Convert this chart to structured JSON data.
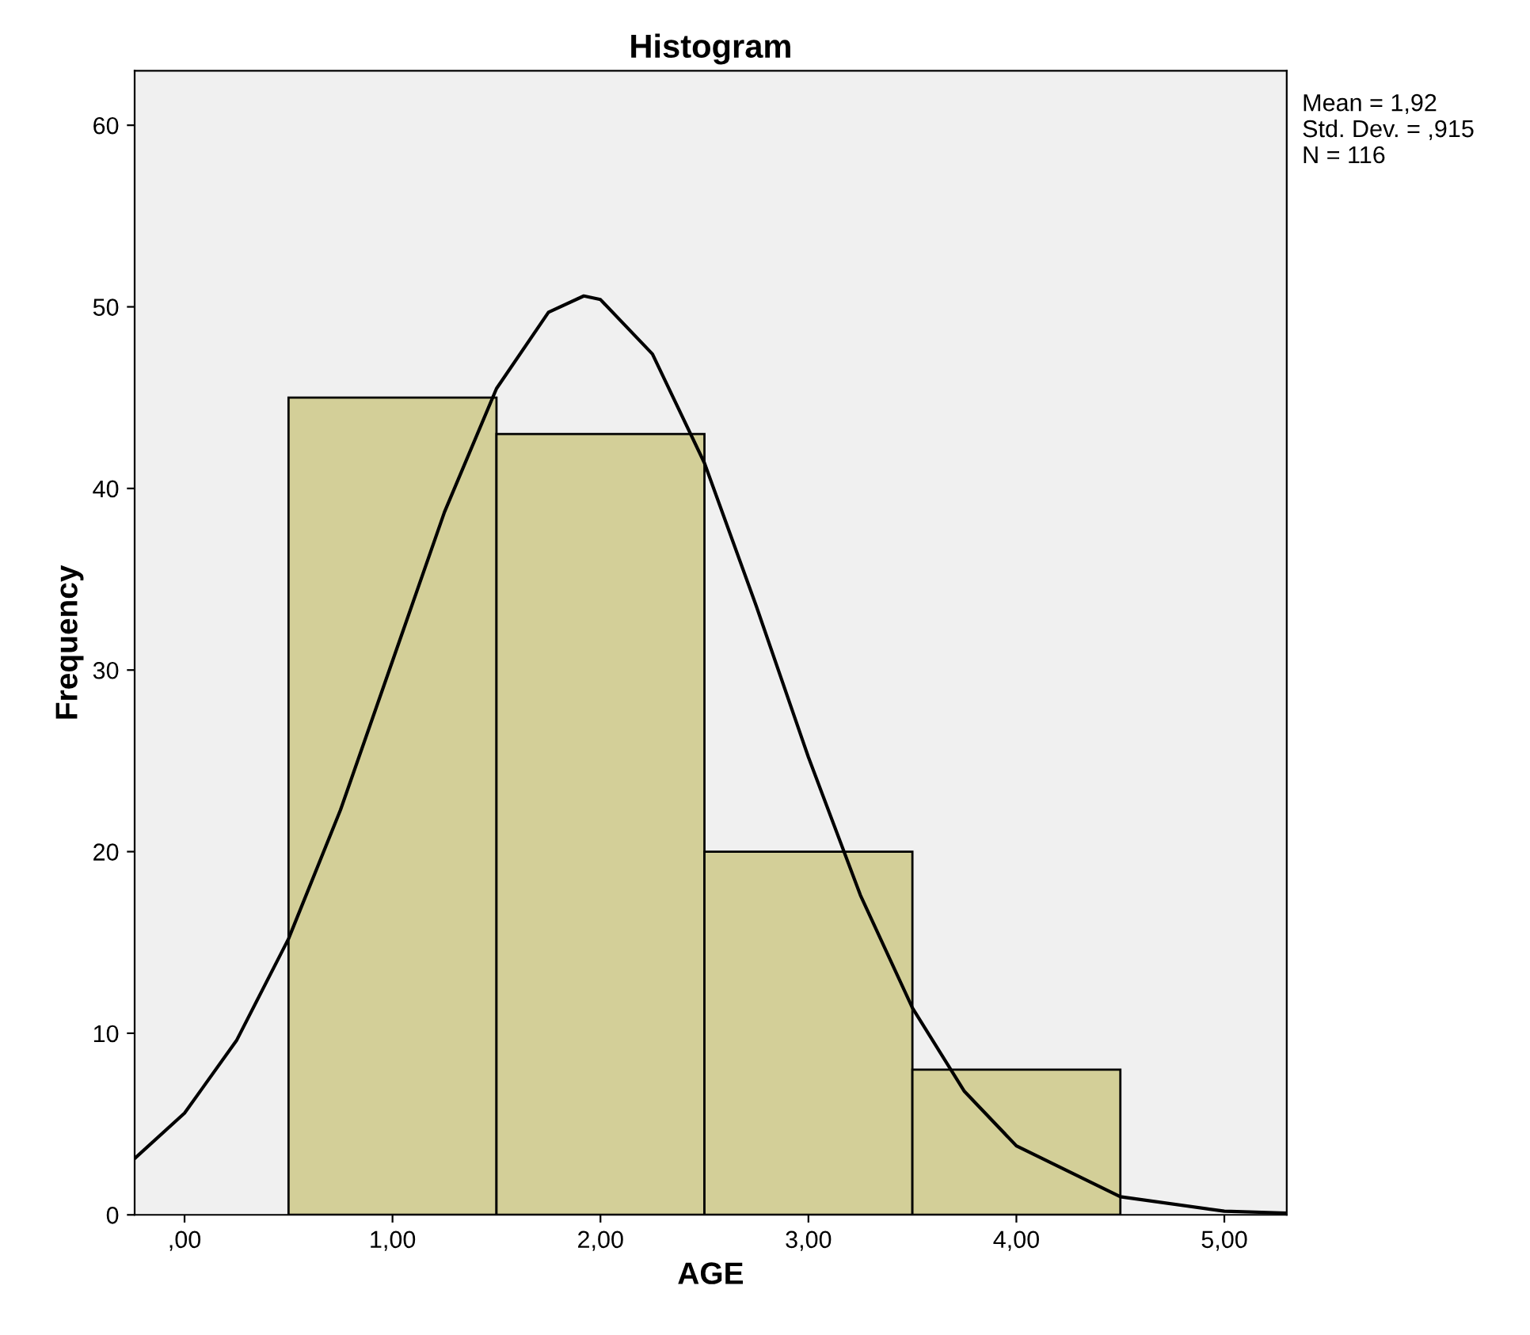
{
  "chart_data": {
    "type": "histogram",
    "title": "Histogram",
    "xlabel": "AGE",
    "ylabel": "Frequency",
    "bins": [
      0.5,
      1.5,
      2.5,
      3.5,
      4.5
    ],
    "values": [
      45,
      43,
      20,
      8
    ],
    "color": "#d3cf98",
    "series": [
      {
        "type": "line",
        "color": "#000000",
        "x": [
          -0.24,
          0,
          0.25,
          0.5,
          0.75,
          1.0,
          1.25,
          1.5,
          1.75,
          1.92,
          2.0,
          2.25,
          2.5,
          2.75,
          3.0,
          3.25,
          3.5,
          3.75,
          4.0,
          4.5,
          5.0,
          5.3
        ],
        "values": [
          3.1,
          5.6,
          9.6,
          15.2,
          22.3,
          30.5,
          38.7,
          45.5,
          49.7,
          50.6,
          50.4,
          47.4,
          41.4,
          33.5,
          25.2,
          17.6,
          11.4,
          6.8,
          3.8,
          1.0,
          0.2,
          0.1
        ]
      }
    ],
    "xlim": [
      -0.24,
      5.3
    ],
    "ylim": [
      0,
      63
    ],
    "xticks": [
      {
        "value": 0,
        "label": ",00"
      },
      {
        "value": 1,
        "label": "1,00"
      },
      {
        "value": 2,
        "label": "2,00"
      },
      {
        "value": 3,
        "label": "3,00"
      },
      {
        "value": 4,
        "label": "4,00"
      },
      {
        "value": 5,
        "label": "5,00"
      }
    ],
    "yticks": [
      0,
      10,
      20,
      30,
      40,
      50,
      60
    ],
    "grid": false,
    "legend": false,
    "annotations": [
      "Mean = 1,92",
      "Std. Dev. = ,915",
      "N = 116"
    ]
  }
}
